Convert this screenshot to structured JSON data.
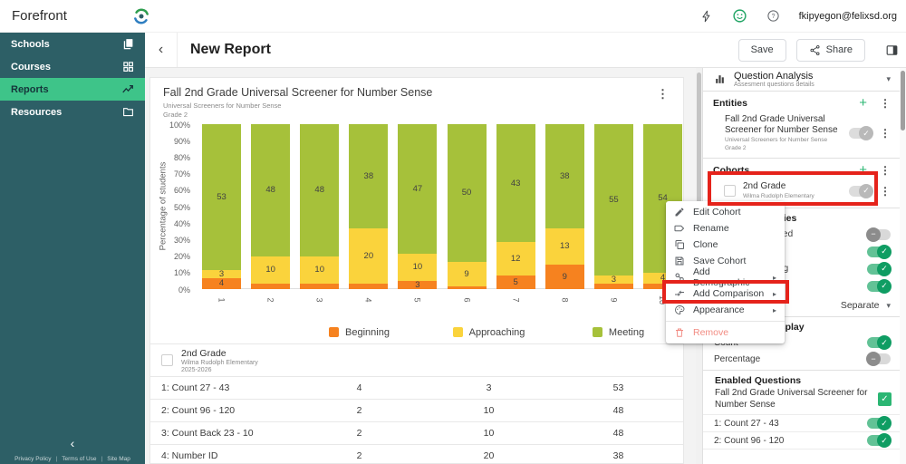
{
  "topbar": {
    "brand": "Forefront",
    "email": "fkipyegon@felixsd.org"
  },
  "sidebar": {
    "items": [
      {
        "label": "Schools",
        "icon": "schools-icon",
        "active": false
      },
      {
        "label": "Courses",
        "icon": "courses-icon",
        "active": false
      },
      {
        "label": "Reports",
        "icon": "reports-icon",
        "active": true
      },
      {
        "label": "Resources",
        "icon": "resources-icon",
        "active": false
      }
    ],
    "footer_links": [
      "Privacy Policy",
      "Terms of Use",
      "Site Map"
    ]
  },
  "header": {
    "title": "New Report",
    "save": "Save",
    "share": "Share"
  },
  "chart_data": {
    "type": "bar",
    "stacked": true,
    "title": "Fall 2nd Grade Universal Screener for Number Sense",
    "subtitle": "Universal Screeners for Number Sense",
    "grade": "Grade 2",
    "categories": [
      "1",
      "2",
      "3",
      "4",
      "5",
      "6",
      "7",
      "8",
      "9",
      "10"
    ],
    "series": [
      {
        "name": "Beginning",
        "color": "#f6821f",
        "values": [
          4,
          2,
          2,
          2,
          3,
          1,
          5,
          9,
          2,
          2
        ]
      },
      {
        "name": "Approaching",
        "color": "#fad33c",
        "values": [
          3,
          10,
          10,
          20,
          10,
          9,
          12,
          13,
          3,
          4
        ]
      },
      {
        "name": "Meeting",
        "color": "#a6c13a",
        "values": [
          53,
          48,
          48,
          38,
          47,
          50,
          43,
          38,
          55,
          54
        ]
      }
    ],
    "bar_total": 60,
    "min_label_value": 3,
    "ylabel": "Percentage of students",
    "yticks": [
      "100%",
      "90%",
      "80%",
      "70%",
      "60%",
      "50%",
      "40%",
      "30%",
      "20%",
      "10%",
      "0%"
    ],
    "legend_position": "bottom"
  },
  "table": {
    "cohort": {
      "title": "2nd Grade",
      "subtitle": "Wilma Rudolph Elementary",
      "year": "2025-2026"
    },
    "columns": [
      "Beginning",
      "Approaching",
      "Meeting"
    ],
    "rows": [
      {
        "label": "1: Count 27 - 43",
        "values": [
          4,
          3,
          53
        ]
      },
      {
        "label": "2: Count 96 - 120",
        "values": [
          2,
          10,
          48
        ]
      },
      {
        "label": "3: Count Back 23 - 10",
        "values": [
          2,
          10,
          48
        ]
      },
      {
        "label": "4: Number ID",
        "values": [
          2,
          20,
          38
        ]
      }
    ]
  },
  "panel": {
    "report_type": {
      "title": "Question Analysis",
      "subtitle": "Assesment questions details"
    },
    "entities": {
      "heading": "Entities",
      "item": {
        "title": "Fall 2nd Grade Universal Screener for Number Sense",
        "subtitle": "Universal Screeners for Number Sense",
        "grade": "Grade 2"
      }
    },
    "cohorts": {
      "heading": "Cohorts",
      "item": {
        "title": "2nd Grade",
        "subtitle": "Wilma Rudolph Elementary"
      }
    },
    "proficiencies": {
      "heading": "Proficiencies",
      "rows": [
        {
          "label": "Not Assessed",
          "state": "off"
        },
        {
          "label": "Beginning",
          "state": "on"
        },
        {
          "label": "Approaching",
          "state": "on"
        },
        {
          "label": "Meeting",
          "state": "on"
        }
      ],
      "mode": "Separate"
    },
    "cohort_size": {
      "heading": "Cohort Size Display",
      "rows": [
        {
          "label": "Count",
          "state": "on"
        },
        {
          "label": "Percentage",
          "state": "off"
        }
      ]
    },
    "enabled_questions": {
      "heading": "Enabled Questions",
      "assessment": "Fall 2nd Grade Universal Screener for Number Sense",
      "rows": [
        {
          "label": "1: Count 27 - 43",
          "state": "on"
        },
        {
          "label": "2: Count 96 - 120",
          "state": "on"
        }
      ]
    }
  },
  "menu": {
    "items": [
      {
        "label": "Edit Cohort",
        "icon": "edit-icon"
      },
      {
        "label": "Rename",
        "icon": "rename-icon"
      },
      {
        "label": "Clone",
        "icon": "clone-icon"
      },
      {
        "label": "Save Cohort",
        "icon": "save-icon"
      },
      {
        "label": "Add Demographic",
        "icon": "demographic-icon",
        "submenu": true
      },
      {
        "label": "Add Comparison",
        "icon": "comparison-icon",
        "submenu": true,
        "highlighted": true
      },
      {
        "label": "Appearance",
        "icon": "appearance-icon",
        "submenu": true
      },
      {
        "label": "Remove",
        "icon": "trash-icon",
        "danger": true
      }
    ]
  },
  "glyphs": {
    "back": "‹",
    "collapse": "‹",
    "kebab": "⋮",
    "plus": "+",
    "caret_down": "▾",
    "submenu_arrow": "▸",
    "check": "✓",
    "minus": "−"
  },
  "colors": {
    "sidebar": "#2d5f66",
    "active_item": "#3ec489",
    "toggle_on": "#0f9d63",
    "annotation": "#e5231b"
  }
}
